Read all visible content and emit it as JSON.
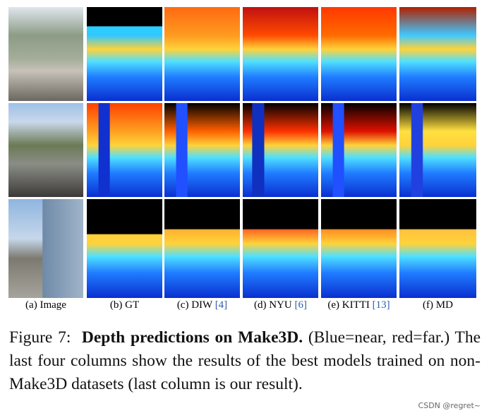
{
  "figure": {
    "columns": [
      {
        "label": "(a) Image"
      },
      {
        "label": "(b) GT"
      },
      {
        "label": "(c) DIW",
        "ref": "[4]"
      },
      {
        "label": "(d) NYU",
        "ref": "[6]"
      },
      {
        "label": "(e) KITTI",
        "ref": "[13]"
      },
      {
        "label": "(f) MD"
      }
    ],
    "caption": {
      "number": "Figure 7:",
      "title": "Depth predictions on Make3D.",
      "text": "(Blue=near, red=far.)  The last four columns show the results of the best models trained on non-Make3D datasets (last column is our result)."
    }
  },
  "watermark": "CSDN @regret~"
}
